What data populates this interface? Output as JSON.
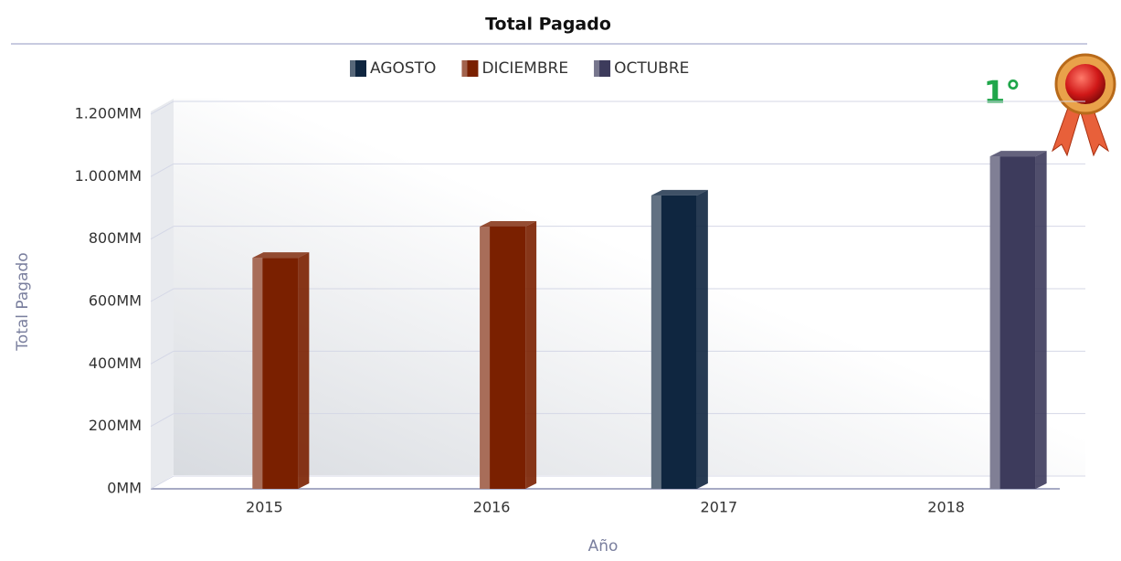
{
  "chart_data": {
    "type": "bar",
    "title": "Total Pagado",
    "categories": [
      "2015",
      "2016",
      "2017",
      "2018"
    ],
    "series": [
      {
        "name": "AGOSTO",
        "color": "#0f2640",
        "values": [
          null,
          null,
          940,
          null
        ]
      },
      {
        "name": "DICIEMBRE",
        "color": "#7a2000",
        "values": [
          740,
          840,
          null,
          null
        ]
      },
      {
        "name": "OCTUBRE",
        "color": "#3d3b5c",
        "values": [
          null,
          null,
          null,
          1065
        ]
      }
    ],
    "ylim": [
      0,
      1200
    ],
    "yticks": [
      {
        "value": 0,
        "label": "0MM"
      },
      {
        "value": 200,
        "label": "200MM"
      },
      {
        "value": 400,
        "label": "400MM"
      },
      {
        "value": 600,
        "label": "600MM"
      },
      {
        "value": 800,
        "label": "800MM"
      },
      {
        "value": 1000,
        "label": "1.000MM"
      },
      {
        "value": 1200,
        "label": "1.200MM"
      }
    ],
    "y_label": "Total Pagado",
    "x_label": "Año",
    "grid": true,
    "legend": "top",
    "annotation": "1°"
  }
}
